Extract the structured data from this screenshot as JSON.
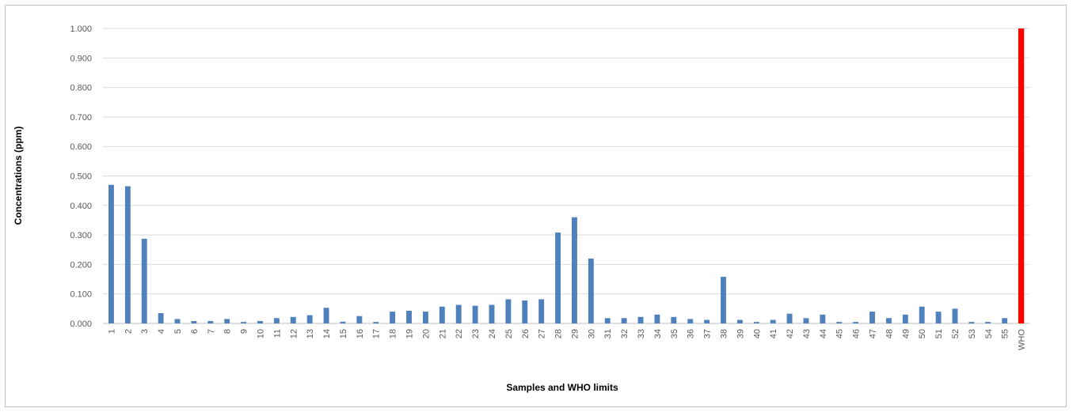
{
  "chart_data": {
    "type": "bar",
    "title": "",
    "xlabel": "Samples and WHO limits",
    "ylabel": "Concentrations (ppm)",
    "ylim": [
      0,
      1.0
    ],
    "yticks": [
      "0.000",
      "0.100",
      "0.200",
      "0.300",
      "0.400",
      "0.500",
      "0.600",
      "0.700",
      "0.800",
      "0.900",
      "1.000"
    ],
    "grid": true,
    "legend": "none",
    "categories": [
      "1",
      "2",
      "3",
      "4",
      "5",
      "6",
      "7",
      "8",
      "9",
      "10",
      "11",
      "12",
      "13",
      "14",
      "15",
      "16",
      "17",
      "18",
      "19",
      "20",
      "21",
      "22",
      "23",
      "24",
      "25",
      "26",
      "27",
      "28",
      "29",
      "30",
      "31",
      "32",
      "33",
      "34",
      "35",
      "36",
      "37",
      "38",
      "39",
      "40",
      "41",
      "42",
      "43",
      "44",
      "45",
      "46",
      "47",
      "48",
      "49",
      "50",
      "51",
      "52",
      "53",
      "54",
      "55",
      "WHO"
    ],
    "values": [
      0.47,
      0.465,
      0.287,
      0.035,
      0.015,
      0.008,
      0.008,
      0.015,
      0.005,
      0.008,
      0.018,
      0.022,
      0.028,
      0.053,
      0.006,
      0.025,
      0.005,
      0.04,
      0.043,
      0.04,
      0.057,
      0.063,
      0.06,
      0.063,
      0.082,
      0.078,
      0.082,
      0.308,
      0.36,
      0.22,
      0.018,
      0.018,
      0.022,
      0.03,
      0.022,
      0.015,
      0.012,
      0.158,
      0.012,
      0.005,
      0.012,
      0.033,
      0.018,
      0.03,
      0.005,
      0.005,
      0.04,
      0.018,
      0.03,
      0.057,
      0.04,
      0.05,
      0.005,
      0.005,
      0.018,
      1.0
    ],
    "colors": {
      "samples": "#4f81bd",
      "who": "#ff0000",
      "grid": "#d9d9d9",
      "axis": "#bfbfbf"
    }
  }
}
